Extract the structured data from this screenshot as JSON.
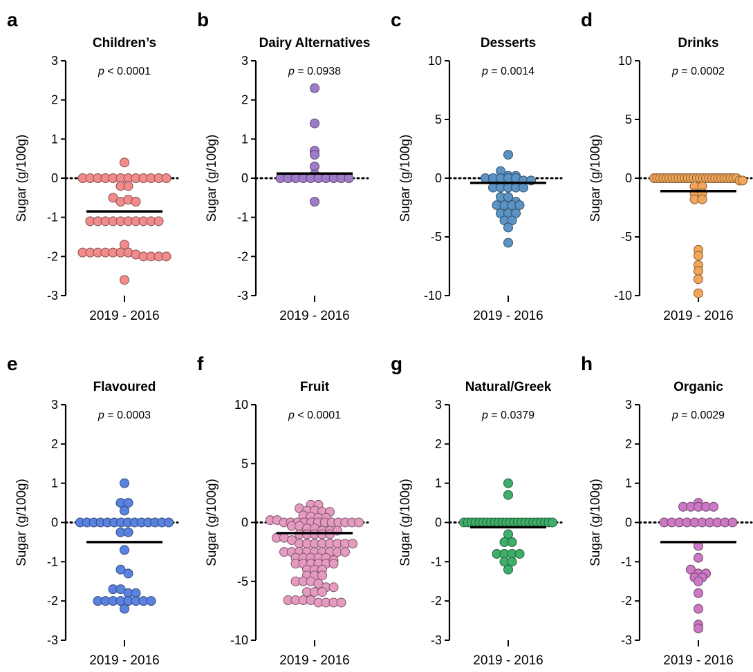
{
  "chart_data": [
    {
      "type": "scatter",
      "letter": "a",
      "title": "Children’s",
      "ptext": " < 0.0001",
      "ylabel": "Sugar (g/100g)",
      "xlabel": "2019 - 2016",
      "ylim": [
        -3,
        3
      ],
      "yticks": [
        3,
        2,
        1,
        0,
        -1,
        -2,
        -3
      ],
      "mean": -0.85,
      "color": "#f28c8c",
      "values": [
        0.4,
        0,
        0,
        0,
        0,
        0,
        0,
        0,
        0,
        0,
        0,
        0,
        0,
        -0.2,
        -0.2,
        -0.5,
        -0.6,
        -0.55,
        -0.6,
        -1.1,
        -1.1,
        -1.1,
        -1.1,
        -1.1,
        -1.1,
        -1.1,
        -1.1,
        -1.1,
        -1.1,
        -1.7,
        -1.9,
        -1.9,
        -1.9,
        -1.9,
        -1.9,
        -1.9,
        -1.9,
        -1.95,
        -2.0,
        -2.0,
        -2.0,
        -2.0,
        -2.6
      ]
    },
    {
      "type": "scatter",
      "letter": "b",
      "title": "Dairy Alternatives",
      "ptext": " = 0.0938",
      "ylabel": "Sugar (g/100g)",
      "xlabel": "2019 - 2016",
      "ylim": [
        -3,
        3
      ],
      "yticks": [
        3,
        2,
        1,
        0,
        -1,
        -2,
        -3
      ],
      "mean": 0.12,
      "color": "#a07cc8",
      "values": [
        2.3,
        1.4,
        0.7,
        0.6,
        0.3,
        0.1,
        0,
        0,
        0,
        0,
        0,
        0,
        0,
        0,
        0,
        0,
        -0.6
      ]
    },
    {
      "type": "scatter",
      "letter": "c",
      "title": "Desserts",
      "ptext": " = 0.0014",
      "ylabel": "Sugar (g/100g)",
      "xlabel": "2019 - 2016",
      "ylim": [
        -10,
        10
      ],
      "yticks": [
        10,
        5,
        0,
        -5,
        -10
      ],
      "mean": -0.4,
      "color": "#5a93c4",
      "values": [
        2.0,
        0.6,
        0.2,
        0.2,
        0,
        0,
        0,
        0,
        0,
        -0.2,
        -0.2,
        -0.8,
        -0.8,
        -0.8,
        -0.8,
        -0.8,
        -1.6,
        -1.6,
        -2.0,
        -2.3,
        -2.3,
        -2.3,
        -2.3,
        -3.0,
        -3.0,
        -3.0,
        -3.6,
        -3.6,
        -4.2,
        -5.5
      ]
    },
    {
      "type": "scatter",
      "letter": "d",
      "title": "Drinks",
      "ptext": " = 0.0002",
      "ylabel": "Sugar (g/100g)",
      "xlabel": "2019 - 2016",
      "ylim": [
        -10,
        10
      ],
      "yticks": [
        10,
        5,
        0,
        -5,
        -10
      ],
      "mean": -1.1,
      "color": "#f2a65a",
      "values": [
        0,
        0,
        0,
        0,
        0,
        0,
        0,
        0,
        0,
        0,
        0,
        0,
        0,
        0,
        0,
        0,
        0,
        0,
        0,
        0,
        0,
        0,
        0,
        0,
        0,
        0,
        0,
        0,
        -0.2,
        -0.2,
        -0.7,
        -0.7,
        -1.3,
        -1.3,
        -1.8,
        -1.8,
        -6.1,
        -6.6,
        -7.4,
        -7.9,
        -8.6,
        -9.8
      ]
    },
    {
      "type": "scatter",
      "letter": "e",
      "title": "Flavoured",
      "ptext": " = 0.0003",
      "ylabel": "Sugar (g/100g)",
      "xlabel": "2019 - 2016",
      "ylim": [
        -3,
        3
      ],
      "yticks": [
        3,
        2,
        1,
        0,
        -1,
        -2,
        -3
      ],
      "mean": -0.5,
      "color": "#5a82e0",
      "values": [
        1.0,
        0.5,
        0.5,
        0.3,
        0,
        0,
        0,
        0,
        0,
        0,
        0,
        0,
        0,
        0,
        0,
        0,
        0,
        0,
        -0.25,
        -0.25,
        -0.7,
        -1.2,
        -1.3,
        -1.7,
        -1.7,
        -1.8,
        -1.8,
        -2.0,
        -2.0,
        -2.0,
        -2.0,
        -2.0,
        -2.0,
        -2.0,
        -2.0,
        -2.2
      ]
    },
    {
      "type": "scatter",
      "letter": "f",
      "title": "Fruit",
      "ptext": " < 0.0001",
      "ylabel": "Sugar (g/100g)",
      "xlabel": "2019 - 2016",
      "ylim": [
        -10,
        10
      ],
      "yticks": [
        10,
        5,
        0,
        -5,
        -10
      ],
      "mean": -0.9,
      "color": "#e59ac0",
      "values": [
        1.5,
        1.5,
        1.2,
        1.0,
        1.0,
        0.9,
        0.9,
        0.6,
        0.5,
        0.4,
        0.4,
        0.2,
        0.2,
        0,
        0,
        0,
        0,
        0,
        0,
        0,
        0,
        0,
        0,
        0,
        0,
        -0.3,
        -0.3,
        -0.5,
        -0.5,
        -0.7,
        -0.7,
        -0.7,
        -1.0,
        -1.0,
        -1.0,
        -1.0,
        -1.0,
        -1.3,
        -1.3,
        -1.5,
        -1.8,
        -1.8,
        -1.8,
        -1.8,
        -1.8,
        -1.8,
        -1.8,
        -1.8,
        -2.5,
        -2.5,
        -2.5,
        -2.5,
        -2.5,
        -2.5,
        -2.5,
        -2.5,
        -2.5,
        -3.0,
        -3.0,
        -3.0,
        -3.0,
        -3.0,
        -3.2,
        -3.5,
        -3.5,
        -3.5,
        -3.5,
        -3.5,
        -3.5,
        -4.0,
        -4.0,
        -4.0,
        -4.5,
        -4.5,
        -4.5,
        -5.0,
        -5.0,
        -5.0,
        -5.2,
        -5.5,
        -5.5,
        -5.9,
        -5.9,
        -5.9,
        -6.6,
        -6.6,
        -6.6,
        -6.6,
        -6.8,
        -6.8,
        -6.8,
        -6.8
      ]
    },
    {
      "type": "scatter",
      "letter": "g",
      "title": "Natural/Greek",
      "ptext": " = 0.0379",
      "ylabel": "Sugar (g/100g)",
      "xlabel": "2019 - 2016",
      "ylim": [
        -3,
        3
      ],
      "yticks": [
        3,
        2,
        1,
        0,
        -1,
        -2,
        -3
      ],
      "mean": -0.12,
      "color": "#3fae6a",
      "values": [
        1.0,
        0.7,
        0,
        0,
        0,
        0,
        0,
        0,
        0,
        0,
        0,
        0,
        0,
        0,
        0,
        0,
        0,
        0,
        0,
        0,
        0,
        0,
        0,
        0,
        0,
        0,
        -0.3,
        -0.5,
        -0.5,
        -0.8,
        -0.8,
        -0.8,
        -0.8,
        -1.0,
        -1.0,
        -1.2
      ]
    },
    {
      "type": "scatter",
      "letter": "h",
      "title": "Organic",
      "ptext": " = 0.0029",
      "ylabel": "Sugar (g/100g)",
      "xlabel": "2019 - 2016",
      "ylim": [
        -3,
        3
      ],
      "yticks": [
        3,
        2,
        1,
        0,
        -1,
        -2,
        -3
      ],
      "mean": -0.5,
      "color": "#cc78c4",
      "values": [
        0.5,
        0.4,
        0.4,
        0.4,
        0.4,
        0.4,
        0,
        0,
        0,
        0,
        0,
        0,
        0,
        0,
        0,
        0,
        -0.6,
        -0.9,
        -1.2,
        -1.3,
        -1.3,
        -1.4,
        -1.4,
        -1.5,
        -1.8,
        -2.2,
        -2.6,
        -2.7
      ]
    }
  ]
}
